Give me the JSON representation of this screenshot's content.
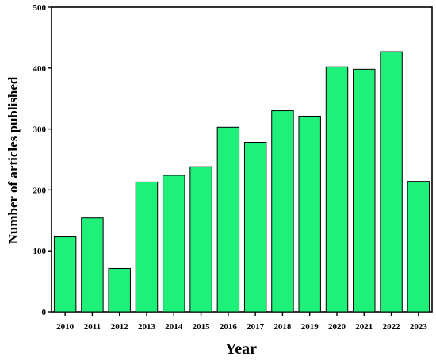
{
  "chart_data": {
    "type": "bar",
    "xlabel": "Year",
    "ylabel": "Number of articles published",
    "categories": [
      "2010",
      "2011",
      "2012",
      "2013",
      "2014",
      "2015",
      "2016",
      "2017",
      "2018",
      "2019",
      "2020",
      "2021",
      "2022",
      "2023"
    ],
    "values": [
      123,
      154,
      71,
      213,
      224,
      238,
      303,
      278,
      330,
      321,
      402,
      398,
      427,
      214
    ],
    "ylim": [
      0,
      500
    ],
    "yticks": [
      "0",
      "100",
      "200",
      "300",
      "400",
      "500"
    ],
    "bar_color": "#1ef07a",
    "bar_edge_color": "#000000",
    "grid": false,
    "legend": "none"
  }
}
